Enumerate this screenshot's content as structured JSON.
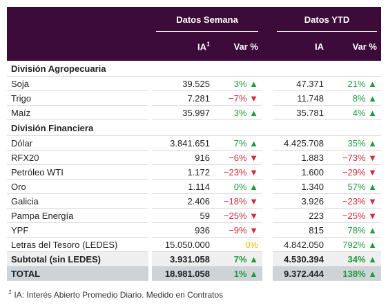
{
  "header": {
    "groups": [
      "Datos Semana",
      "Datos YTD"
    ],
    "columns": [
      {
        "label": "IA",
        "note": "1"
      },
      {
        "label": "Var %"
      },
      {
        "label": "IA"
      },
      {
        "label": "Var %"
      }
    ]
  },
  "sections": [
    {
      "title": "División Agropecuaria",
      "rows": [
        [
          "Soja",
          "39.525",
          "3% ▲",
          "47.371",
          "21% ▲"
        ],
        [
          "Trigo",
          "7.281",
          "−7% ▼",
          "11.748",
          "8% ▲"
        ],
        [
          "Maíz",
          "35.997",
          "3% ▲",
          "35.781",
          "4% ▲"
        ]
      ]
    },
    {
      "title": "División Financiera",
      "rows": [
        [
          "Dólar",
          "3.841.651",
          "7% ▲",
          "4.425.708",
          "35% ▲"
        ],
        [
          "RFX20",
          "916",
          "−6% ▼",
          "1.883",
          "−73% ▼"
        ],
        [
          "Petróleo WTI",
          "1.172",
          "−23% ▼",
          "1.600",
          "−29% ▼"
        ],
        [
          "Oro",
          "1.114",
          "0% ▲",
          "1.340",
          "57% ▲"
        ],
        [
          "Galicia",
          "2.406",
          "−18% ▼",
          "3.926",
          "−23% ▼"
        ],
        [
          "Pampa Energía",
          "59",
          "−25% ▼",
          "223",
          "−25% ▼"
        ],
        [
          "YPF",
          "936",
          "−9% ▼",
          "815",
          "78% ▲"
        ],
        [
          "Letras del Tesoro (LEDES)",
          "15.050.000",
          "0%",
          "4.842.050",
          "792% ▲"
        ]
      ]
    }
  ],
  "subtotal": [
    "Subtotal (sin LEDES)",
    "3.931.058",
    "7% ▲",
    "4.530.394",
    "34% ▲"
  ],
  "total": [
    "TOTAL",
    "18.981.058",
    "1% ▲",
    "9.372.444",
    "138% ▲"
  ],
  "footnote": {
    "mark": "1",
    "text": "IA: Interés Abierto Promedio Diario. Medido en Contratos"
  }
}
